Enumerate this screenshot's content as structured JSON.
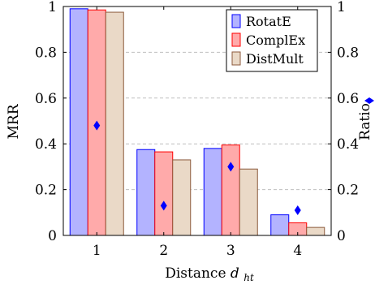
{
  "chart_data": {
    "type": "bar",
    "categories": [
      "1",
      "2",
      "3",
      "4"
    ],
    "series": [
      {
        "name": "RotatE",
        "values": [
          0.99,
          0.375,
          0.38,
          0.09
        ],
        "fill": "#b3b3ff",
        "stroke": "#0000ff"
      },
      {
        "name": "ComplEx",
        "values": [
          0.985,
          0.365,
          0.395,
          0.055
        ],
        "fill": "#ffaaaa",
        "stroke": "#ff0000"
      },
      {
        "name": "DistMult",
        "values": [
          0.975,
          0.33,
          0.29,
          0.035
        ],
        "fill": "#ead9c7",
        "stroke": "#8c5a3c"
      }
    ],
    "ratio": {
      "values": [
        0.48,
        0.13,
        0.3,
        0.11
      ],
      "color": "#0000ff",
      "marker": "diamond"
    },
    "xlabel": "Distance",
    "xlabel_subscript": "ht",
    "ylabel": "MRR",
    "ylabel_right": "Ratio",
    "ylim": [
      0,
      1
    ],
    "yticks": [
      "0",
      "0.2",
      "0.4",
      "0.6",
      "0.8",
      "1"
    ],
    "yticks_right": [
      "0",
      "0.2",
      "0.4",
      "0.6",
      "0.8",
      "1"
    ],
    "grid": "horizontal-dashed",
    "legend": "top-right"
  }
}
